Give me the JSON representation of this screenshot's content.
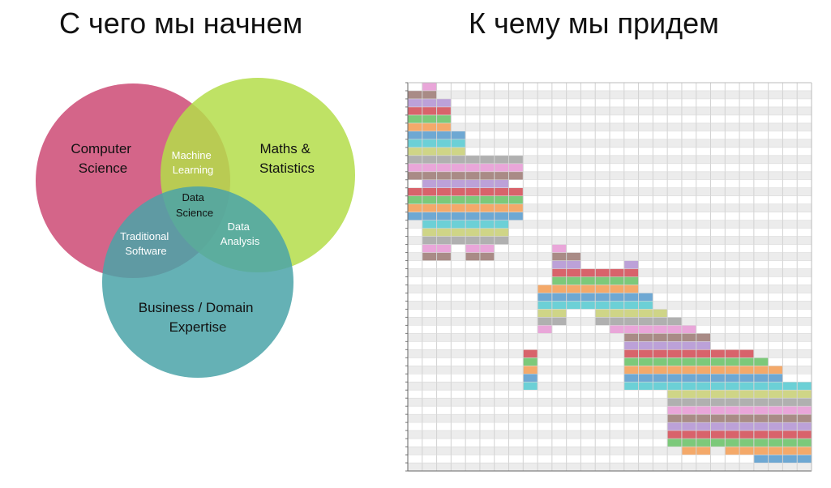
{
  "titles": {
    "left": "С чего мы начнем",
    "right": "К чему мы придем"
  },
  "venn": {
    "sets": [
      {
        "label_lines": [
          "Computer",
          "Science"
        ],
        "color": "#cc4a74"
      },
      {
        "label_lines": [
          "Maths &",
          "Statistics"
        ],
        "color": "#b4dd4a"
      },
      {
        "label_lines": [
          "Business / Domain",
          "Expertise"
        ],
        "color": "#4aa3a8"
      }
    ],
    "intersections": [
      {
        "label_lines": [
          "Machine",
          "Learning"
        ]
      },
      {
        "label_lines": [
          "Data",
          "Analysis"
        ]
      },
      {
        "label_lines": [
          "Traditional",
          "Software"
        ]
      },
      {
        "label_lines": [
          "Data",
          "Science"
        ]
      }
    ]
  },
  "timeline": {
    "row_count": 48,
    "col_count": 28,
    "colors": {
      "pink": "#e9a6d9",
      "brown": "#a98b86",
      "purple": "#bca1d8",
      "red": "#d8636b",
      "green": "#7cc97a",
      "orange": "#f4a96a",
      "blue": "#6ea8d3",
      "cyan": "#6cd0d6",
      "olive": "#cfd587",
      "gray": "#b0b0b0"
    },
    "bars": [
      {
        "row": 0,
        "start": 1,
        "end": 2,
        "color": "pink"
      },
      {
        "row": 1,
        "start": 0,
        "end": 2,
        "color": "brown"
      },
      {
        "row": 2,
        "start": 0,
        "end": 3,
        "color": "purple"
      },
      {
        "row": 3,
        "start": 0,
        "end": 3,
        "color": "red"
      },
      {
        "row": 4,
        "start": 0,
        "end": 3,
        "color": "green"
      },
      {
        "row": 5,
        "start": 0,
        "end": 3,
        "color": "orange"
      },
      {
        "row": 6,
        "start": 0,
        "end": 4,
        "color": "blue"
      },
      {
        "row": 7,
        "start": 0,
        "end": 4,
        "color": "cyan"
      },
      {
        "row": 8,
        "start": 0,
        "end": 4,
        "color": "olive"
      },
      {
        "row": 9,
        "start": 0,
        "end": 8,
        "color": "gray"
      },
      {
        "row": 10,
        "start": 0,
        "end": 8,
        "color": "pink"
      },
      {
        "row": 11,
        "start": 0,
        "end": 8,
        "color": "brown"
      },
      {
        "row": 12,
        "start": 1,
        "end": 7,
        "color": "purple"
      },
      {
        "row": 13,
        "start": 0,
        "end": 8,
        "color": "red"
      },
      {
        "row": 14,
        "start": 0,
        "end": 8,
        "color": "green"
      },
      {
        "row": 15,
        "start": 0,
        "end": 8,
        "color": "orange"
      },
      {
        "row": 16,
        "start": 0,
        "end": 8,
        "color": "blue"
      },
      {
        "row": 17,
        "start": 1,
        "end": 7,
        "color": "cyan"
      },
      {
        "row": 18,
        "start": 1,
        "end": 7,
        "color": "olive"
      },
      {
        "row": 19,
        "start": 1,
        "end": 7,
        "color": "gray"
      },
      {
        "row": 20,
        "start": 1,
        "end": 3,
        "color": "pink"
      },
      {
        "row": 20,
        "start": 4,
        "end": 6,
        "color": "pink"
      },
      {
        "row": 20,
        "start": 10,
        "end": 11,
        "color": "pink"
      },
      {
        "row": 21,
        "start": 1,
        "end": 3,
        "color": "brown"
      },
      {
        "row": 21,
        "start": 4,
        "end": 6,
        "color": "brown"
      },
      {
        "row": 21,
        "start": 10,
        "end": 12,
        "color": "brown"
      },
      {
        "row": 22,
        "start": 10,
        "end": 12,
        "color": "purple"
      },
      {
        "row": 22,
        "start": 15,
        "end": 16,
        "color": "purple"
      },
      {
        "row": 23,
        "start": 10,
        "end": 16,
        "color": "red"
      },
      {
        "row": 24,
        "start": 10,
        "end": 16,
        "color": "green"
      },
      {
        "row": 25,
        "start": 9,
        "end": 16,
        "color": "orange"
      },
      {
        "row": 26,
        "start": 9,
        "end": 17,
        "color": "blue"
      },
      {
        "row": 27,
        "start": 9,
        "end": 17,
        "color": "cyan"
      },
      {
        "row": 28,
        "start": 9,
        "end": 11,
        "color": "olive"
      },
      {
        "row": 28,
        "start": 13,
        "end": 18,
        "color": "olive"
      },
      {
        "row": 29,
        "start": 9,
        "end": 11,
        "color": "gray"
      },
      {
        "row": 29,
        "start": 13,
        "end": 19,
        "color": "gray"
      },
      {
        "row": 30,
        "start": 9,
        "end": 10,
        "color": "pink"
      },
      {
        "row": 30,
        "start": 14,
        "end": 20,
        "color": "pink"
      },
      {
        "row": 31,
        "start": 15,
        "end": 21,
        "color": "brown"
      },
      {
        "row": 32,
        "start": 15,
        "end": 21,
        "color": "purple"
      },
      {
        "row": 33,
        "start": 8,
        "end": 9,
        "color": "red"
      },
      {
        "row": 33,
        "start": 15,
        "end": 24,
        "color": "red"
      },
      {
        "row": 34,
        "start": 8,
        "end": 9,
        "color": "green"
      },
      {
        "row": 34,
        "start": 15,
        "end": 25,
        "color": "green"
      },
      {
        "row": 35,
        "start": 8,
        "end": 9,
        "color": "orange"
      },
      {
        "row": 35,
        "start": 15,
        "end": 26,
        "color": "orange"
      },
      {
        "row": 36,
        "start": 8,
        "end": 9,
        "color": "blue"
      },
      {
        "row": 36,
        "start": 15,
        "end": 26,
        "color": "blue"
      },
      {
        "row": 37,
        "start": 8,
        "end": 9,
        "color": "cyan"
      },
      {
        "row": 37,
        "start": 15,
        "end": 28,
        "color": "cyan"
      },
      {
        "row": 38,
        "start": 18,
        "end": 28,
        "color": "olive"
      },
      {
        "row": 39,
        "start": 18,
        "end": 28,
        "color": "gray"
      },
      {
        "row": 40,
        "start": 18,
        "end": 28,
        "color": "pink"
      },
      {
        "row": 41,
        "start": 18,
        "end": 28,
        "color": "brown"
      },
      {
        "row": 42,
        "start": 18,
        "end": 28,
        "color": "purple"
      },
      {
        "row": 43,
        "start": 18,
        "end": 28,
        "color": "red"
      },
      {
        "row": 44,
        "start": 18,
        "end": 28,
        "color": "green"
      },
      {
        "row": 45,
        "start": 19,
        "end": 21,
        "color": "orange"
      },
      {
        "row": 45,
        "start": 22,
        "end": 28,
        "color": "orange"
      },
      {
        "row": 46,
        "start": 24,
        "end": 28,
        "color": "blue"
      }
    ]
  }
}
